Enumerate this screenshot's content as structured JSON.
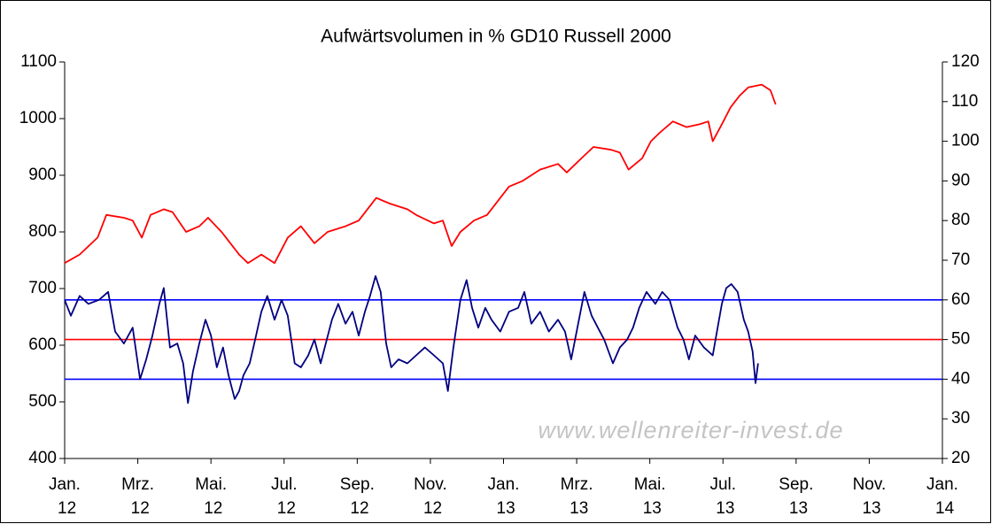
{
  "chart_data": {
    "type": "line",
    "title": "Aufwärtsvolumen in % GD10 Russell 2000",
    "watermark": "www.wellenreiter-invest.de",
    "xlim": [
      0,
      24
    ],
    "xticks": [
      {
        "value": 0,
        "label": "Jan. 12"
      },
      {
        "value": 2,
        "label": "Mrz. 12"
      },
      {
        "value": 4,
        "label": "Mai. 12"
      },
      {
        "value": 6,
        "label": "Jul. 12"
      },
      {
        "value": 8,
        "label": "Sep. 12"
      },
      {
        "value": 10,
        "label": "Nov. 12"
      },
      {
        "value": 12,
        "label": "Jan. 13"
      },
      {
        "value": 14,
        "label": "Mrz. 13"
      },
      {
        "value": 16,
        "label": "Mai. 13"
      },
      {
        "value": 18,
        "label": "Jul. 13"
      },
      {
        "value": 20,
        "label": "Sep. 13"
      },
      {
        "value": 22,
        "label": "Nov. 13"
      },
      {
        "value": 24,
        "label": "Jan. 14"
      }
    ],
    "ylim": [
      400,
      1100
    ],
    "yticks": [
      400,
      500,
      600,
      700,
      800,
      900,
      1000,
      1100
    ],
    "y2lim": [
      20,
      120
    ],
    "y2ticks": [
      20,
      30,
      40,
      50,
      60,
      70,
      80,
      90,
      100,
      110,
      120
    ],
    "reference_lines": [
      {
        "value": 60,
        "color": "#0000ff",
        "axis": "y2"
      },
      {
        "value": 50,
        "color": "#ff0000",
        "axis": "y2"
      },
      {
        "value": 40,
        "color": "#0000ff",
        "axis": "y2"
      }
    ],
    "series": [
      {
        "color": "#ff0000",
        "axis": "y",
        "x": [
          0,
          0.41,
          0.9,
          1.14,
          1.62,
          1.86,
          2.11,
          2.35,
          2.71,
          2.95,
          3.32,
          3.68,
          3.92,
          4.29,
          4.53,
          4.77,
          5.01,
          5.38,
          5.74,
          6.1,
          6.46,
          6.83,
          7.19,
          7.68,
          8.04,
          8.52,
          8.89,
          9.37,
          9.61,
          10.1,
          10.34,
          10.58,
          10.82,
          11.19,
          11.55,
          11.91,
          12.15,
          12.52,
          13.0,
          13.49,
          13.73,
          14.21,
          14.46,
          14.94,
          15.18,
          15.42,
          15.79,
          16.03,
          16.27,
          16.63,
          17.0,
          17.36,
          17.6,
          17.72,
          17.97,
          18.21,
          18.45,
          18.69,
          19.06,
          19.3,
          19.44
        ],
        "values": [
          745,
          760,
          790,
          830,
          825,
          820,
          790,
          830,
          840,
          835,
          800,
          810,
          825,
          800,
          780,
          760,
          745,
          760,
          745,
          790,
          810,
          780,
          800,
          810,
          820,
          860,
          850,
          840,
          830,
          815,
          820,
          775,
          800,
          820,
          830,
          860,
          880,
          890,
          910,
          920,
          905,
          935,
          950,
          945,
          940,
          910,
          930,
          960,
          975,
          995,
          985,
          990,
          995,
          960,
          990,
          1020,
          1040,
          1055,
          1060,
          1050,
          1025
        ]
      },
      {
        "color": "#000080",
        "axis": "y2",
        "x": [
          0,
          0.17,
          0.41,
          0.65,
          0.94,
          1.19,
          1.38,
          1.62,
          1.86,
          2.06,
          2.23,
          2.4,
          2.59,
          2.71,
          2.88,
          3.08,
          3.24,
          3.37,
          3.51,
          3.68,
          3.85,
          4.0,
          4.16,
          4.33,
          4.48,
          4.65,
          4.77,
          4.89,
          5.06,
          5.21,
          5.38,
          5.54,
          5.74,
          5.93,
          6.1,
          6.29,
          6.46,
          6.66,
          6.83,
          7.0,
          7.14,
          7.31,
          7.48,
          7.68,
          7.87,
          8.04,
          8.21,
          8.35,
          8.5,
          8.64,
          8.79,
          8.93,
          9.13,
          9.37,
          9.61,
          9.85,
          10.1,
          10.34,
          10.48,
          10.63,
          10.82,
          10.99,
          11.14,
          11.31,
          11.5,
          11.67,
          11.91,
          12.15,
          12.4,
          12.57,
          12.76,
          13.0,
          13.24,
          13.49,
          13.68,
          13.85,
          14.02,
          14.21,
          14.41,
          14.58,
          14.75,
          14.99,
          15.18,
          15.38,
          15.54,
          15.71,
          15.91,
          16.15,
          16.34,
          16.54,
          16.76,
          16.92,
          17.07,
          17.24,
          17.48,
          17.72,
          17.97,
          18.09,
          18.23,
          18.4,
          18.57,
          18.69,
          18.81,
          18.89,
          18.96
        ],
        "values": [
          60,
          56,
          61,
          59,
          60,
          62,
          52,
          49,
          53,
          40,
          45,
          51,
          59,
          63,
          48,
          49,
          44,
          34,
          42,
          49,
          55,
          51,
          43,
          48,
          41,
          35,
          37,
          41,
          44,
          50,
          57,
          61,
          55,
          60,
          56,
          44,
          43,
          46,
          50,
          44,
          49,
          55,
          59,
          54,
          57,
          51,
          57,
          61,
          66,
          62,
          49,
          43,
          45,
          44,
          46,
          48,
          46,
          44,
          37,
          48,
          60,
          65,
          58,
          53,
          58,
          55,
          52,
          57,
          58,
          62,
          54,
          57,
          52,
          55,
          52,
          45,
          53,
          62,
          56,
          53,
          50,
          44,
          48,
          50,
          53,
          58,
          62,
          59,
          62,
          60,
          53,
          50,
          45,
          51,
          48,
          46,
          59,
          63,
          64,
          62,
          55,
          52,
          47,
          39,
          44
        ]
      }
    ]
  }
}
